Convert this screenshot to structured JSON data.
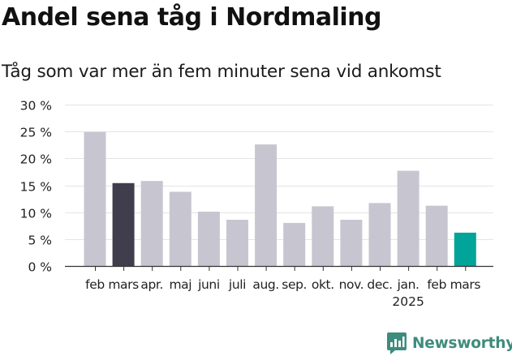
{
  "chart_data": {
    "type": "bar",
    "title": "Andel sena tåg i Nordmaling",
    "subtitle": "Tåg som var mer än fem minuter sena vid ankomst",
    "categories": [
      "feb",
      "mars",
      "apr.",
      "maj",
      "juni",
      "juli",
      "aug.",
      "sep.",
      "okt.",
      "nov.",
      "dec.",
      "jan.",
      "feb",
      "mars"
    ],
    "year_label": "2025",
    "year_label_under": "jan.",
    "values": [
      24.9,
      15.4,
      15.8,
      13.8,
      10.1,
      8.6,
      22.6,
      8.0,
      11.1,
      8.6,
      11.7,
      17.7,
      11.2,
      6.2
    ],
    "ylim": [
      0,
      30
    ],
    "yticks": [
      0,
      5,
      10,
      15,
      20,
      25,
      30
    ],
    "ytick_labels": [
      "0 %",
      "5 %",
      "10 %",
      "15 %",
      "20 %",
      "25 %",
      "30 %"
    ],
    "xlabel": "",
    "ylabel": "",
    "grid": true,
    "colors": {
      "default": "#c7c6d0",
      "highlight_dark": "#403e4c",
      "highlight_current": "#00a499",
      "grid": "#e4e4e4",
      "axis": "#333333",
      "text": "#222222"
    },
    "bar_color_roles": [
      "default",
      "highlight_dark",
      "default",
      "default",
      "default",
      "default",
      "default",
      "default",
      "default",
      "default",
      "default",
      "default",
      "default",
      "highlight_current"
    ]
  },
  "branding": {
    "logo_text": "Newsworthy",
    "logo_icon": "newsworthy-chart-icon",
    "logo_color": "#3d8c7d"
  }
}
